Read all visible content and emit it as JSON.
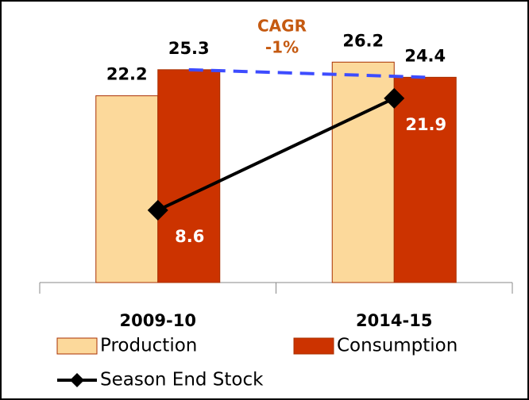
{
  "chart_data": {
    "type": "bar",
    "categories": [
      "2009-10",
      "2014-15"
    ],
    "series": [
      {
        "name": "Production",
        "color": "#fcd99b",
        "values": [
          22.2,
          26.2
        ]
      },
      {
        "name": "Consumption",
        "color": "#cc3300",
        "values": [
          25.3,
          24.4
        ]
      },
      {
        "name": "Season End Stock",
        "type": "line",
        "color": "#000000",
        "values": [
          8.6,
          21.9
        ]
      }
    ],
    "ylim": [
      0,
      30
    ],
    "annotations": [
      "CAGR",
      "-1%"
    ],
    "annotation_color": "#c55a11",
    "trend_color": "#3d4cff"
  }
}
